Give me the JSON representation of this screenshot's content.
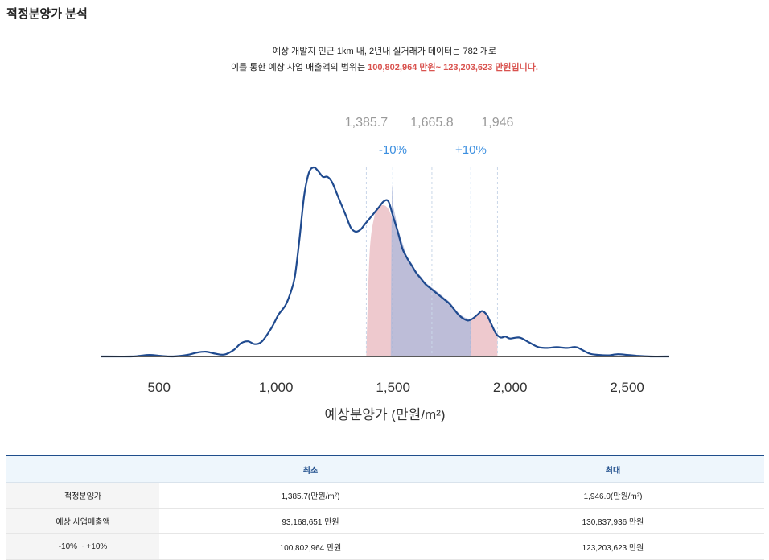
{
  "page": {
    "title": "적정분양가 분석",
    "summary": {
      "line1": "예상 개발지 인근 1km 내, 2년내 실거래가 데이터는 782 개로",
      "line2_prefix": "이를 통한 예상 사업 매출액의 범위는 ",
      "line2_highlight": "100,802,964 만원~ 123,203,623 만원입니다."
    }
  },
  "colors": {
    "density_line": "#1f4a8f",
    "fill_pink": "#e8b7bd",
    "fill_blue": "#b4bbd9",
    "dashed_blue": "#3c8fe0",
    "marker_label": "#999999",
    "pct_label": "#3c8fe0",
    "highlight": "#d9534f"
  },
  "chart_data": {
    "type": "area",
    "xlabel": "예상분양가 (만원/m²)",
    "xlim": [
      250,
      2680
    ],
    "ylim": [
      0,
      1.0
    ],
    "xticks": [
      500,
      1000,
      1500,
      2000,
      2500
    ],
    "xtick_labels": [
      "500",
      "1,000",
      "1,500",
      "2,000",
      "2,500"
    ],
    "grid": false,
    "legend": "none",
    "markers": [
      {
        "value": 1385.7,
        "label": "1,385.7"
      },
      {
        "value": 1665.8,
        "label": "1,665.8"
      },
      {
        "value": 1946,
        "label": "1,946"
      }
    ],
    "pct_markers": [
      {
        "value": 1499.1,
        "label": "-10%"
      },
      {
        "value": 1832.5,
        "label": "+10%"
      }
    ],
    "series": [
      {
        "x": [
          250,
          380,
          420,
          460,
          500,
          560,
          620,
          660,
          700,
          740,
          780,
          820,
          850,
          880,
          910,
          940,
          980,
          1010,
          1040,
          1060,
          1080,
          1100,
          1120,
          1140,
          1160,
          1180,
          1200,
          1220,
          1240,
          1260,
          1280,
          1300,
          1320,
          1340,
          1360,
          1380,
          1400,
          1420,
          1440,
          1460,
          1480,
          1500,
          1520,
          1540,
          1560,
          1580,
          1600,
          1620,
          1640,
          1660,
          1680,
          1700,
          1720,
          1740,
          1760,
          1780,
          1800,
          1820,
          1840,
          1860,
          1880,
          1900,
          1920,
          1940,
          1960,
          1980,
          2000,
          2040,
          2080,
          2120,
          2160,
          2200,
          2240,
          2280,
          2300,
          2340,
          2380,
          2420,
          2460,
          2500,
          2540,
          2600,
          2680
        ],
        "y": [
          0,
          0,
          0.004,
          0.008,
          0.004,
          0,
          0.008,
          0.02,
          0.025,
          0.015,
          0.01,
          0.035,
          0.07,
          0.08,
          0.065,
          0.08,
          0.15,
          0.22,
          0.27,
          0.33,
          0.42,
          0.62,
          0.85,
          0.97,
          1.0,
          0.98,
          0.95,
          0.95,
          0.92,
          0.86,
          0.8,
          0.74,
          0.68,
          0.66,
          0.67,
          0.7,
          0.73,
          0.76,
          0.79,
          0.82,
          0.82,
          0.74,
          0.66,
          0.57,
          0.52,
          0.48,
          0.44,
          0.41,
          0.38,
          0.36,
          0.34,
          0.32,
          0.3,
          0.28,
          0.25,
          0.22,
          0.2,
          0.19,
          0.2,
          0.22,
          0.24,
          0.22,
          0.17,
          0.12,
          0.1,
          0.105,
          0.095,
          0.1,
          0.075,
          0.05,
          0.045,
          0.05,
          0.045,
          0.05,
          0.04,
          0.015,
          0.008,
          0.006,
          0.012,
          0.008,
          0.004,
          0,
          0
        ]
      }
    ],
    "fill_pink_x": [
      1385.7,
      1400,
      1420,
      1440,
      1460,
      1480,
      1500,
      1520,
      1540,
      1560,
      1580,
      1600,
      1620,
      1640,
      1660,
      1680,
      1700,
      1720,
      1740,
      1760,
      1780,
      1800,
      1820,
      1840,
      1860,
      1880,
      1900,
      1920,
      1940,
      1946
    ],
    "fill_pink_y": [
      0.02,
      0.55,
      0.74,
      0.79,
      0.8,
      0.78,
      0.72,
      0.65,
      0.56,
      0.51,
      0.47,
      0.43,
      0.4,
      0.37,
      0.35,
      0.33,
      0.31,
      0.29,
      0.27,
      0.24,
      0.22,
      0.2,
      0.19,
      0.2,
      0.22,
      0.24,
      0.22,
      0.17,
      0.12,
      0.1
    ],
    "fill_blue_x": [
      1490,
      1495,
      1500,
      1510,
      1520,
      1540,
      1560,
      1580,
      1600,
      1620,
      1640,
      1660,
      1680,
      1700,
      1720,
      1740,
      1760,
      1780,
      1800,
      1820,
      1832
    ],
    "fill_blue_y": [
      0.05,
      0.86,
      0.8,
      0.74,
      0.68,
      0.6,
      0.53,
      0.49,
      0.45,
      0.42,
      0.39,
      0.37,
      0.35,
      0.33,
      0.31,
      0.29,
      0.26,
      0.23,
      0.21,
      0.2,
      0.19
    ]
  },
  "table": {
    "headers": [
      "",
      "최소",
      "최대"
    ],
    "rows": [
      {
        "label": "적정분양가",
        "min": "1,385.7(만원/m²)",
        "max": "1,946.0(만원/m²)"
      },
      {
        "label": "예상 사업매출액",
        "min": "93,168,651 만원",
        "max": "130,837,936 만원"
      },
      {
        "label": "-10% ~ +10%",
        "min": "100,802,964 만원",
        "max": "123,203,623 만원"
      }
    ]
  }
}
